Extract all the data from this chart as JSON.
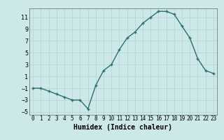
{
  "x": [
    0,
    1,
    2,
    3,
    4,
    5,
    6,
    7,
    8,
    9,
    10,
    11,
    12,
    13,
    14,
    15,
    16,
    17,
    18,
    19,
    20,
    21,
    22,
    23
  ],
  "y": [
    -1,
    -1,
    -1.5,
    -2,
    -2.5,
    -3,
    -3,
    -4.5,
    -0.5,
    2,
    3,
    5.5,
    7.5,
    8.5,
    10,
    11,
    12,
    12,
    11.5,
    9.5,
    7.5,
    4,
    2,
    1.5
  ],
  "line_color": "#2e6e6e",
  "marker": "+",
  "bg_color": "#cce8e8",
  "grid_color_major": "#b8d0d0",
  "grid_color_minor": "#d4e8e8",
  "xlabel": "Humidex (Indice chaleur)",
  "xlim": [
    -0.5,
    23.5
  ],
  "ylim": [
    -5.5,
    12.5
  ],
  "yticks": [
    -5,
    -3,
    -1,
    1,
    3,
    5,
    7,
    9,
    11
  ],
  "xticks": [
    0,
    1,
    2,
    3,
    4,
    5,
    6,
    7,
    8,
    9,
    10,
    11,
    12,
    13,
    14,
    15,
    16,
    17,
    18,
    19,
    20,
    21,
    22,
    23
  ]
}
